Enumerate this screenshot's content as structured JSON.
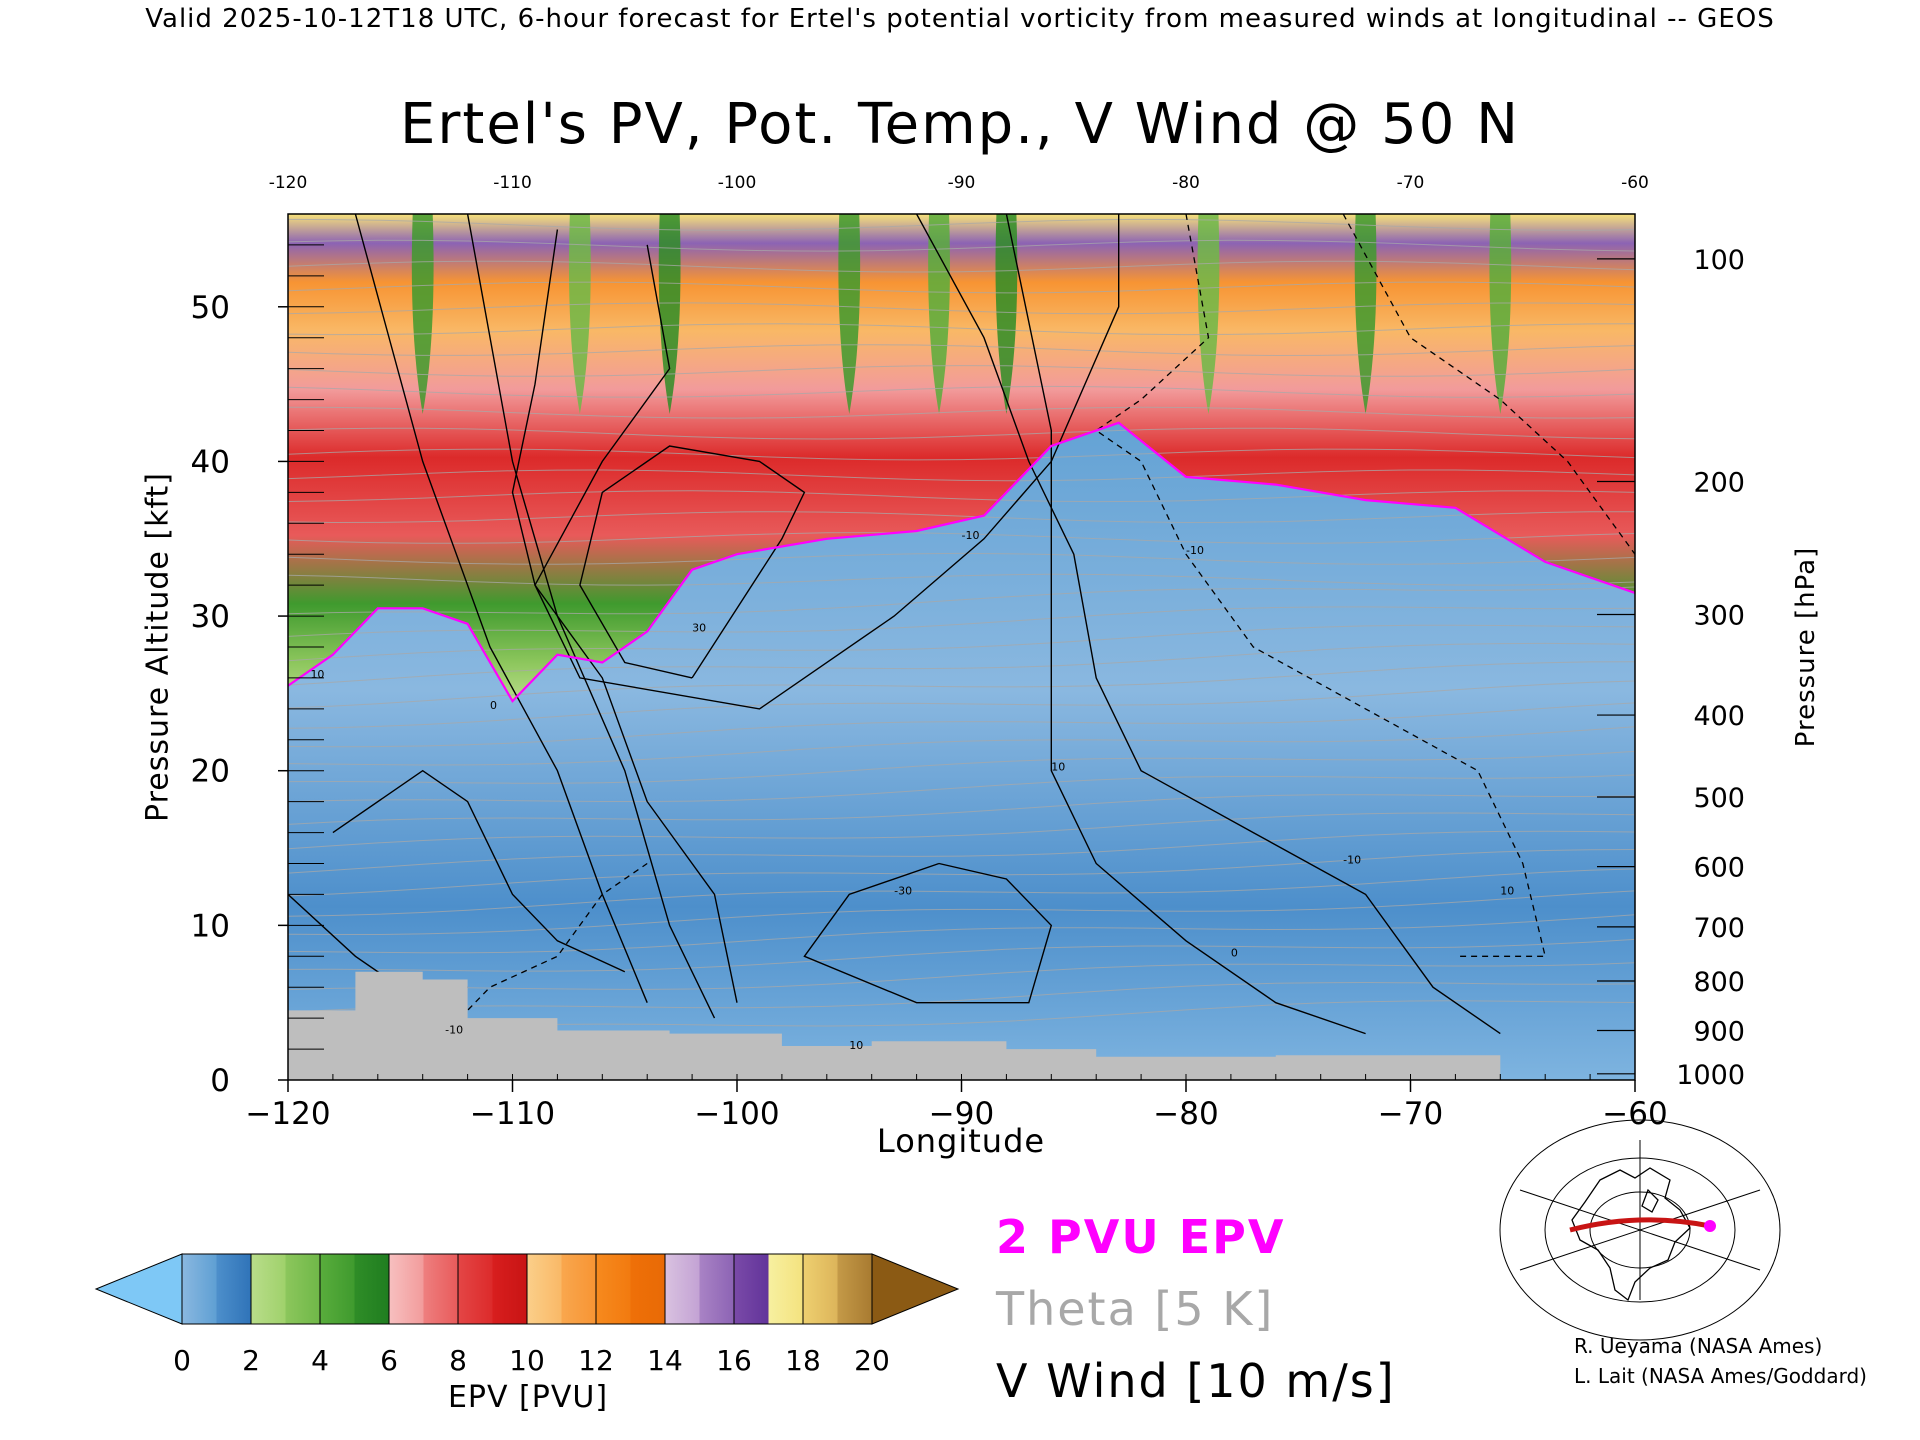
{
  "header": "Valid 2025-10-12T18 UTC, 6-hour forecast for Ertel's potential vorticity from measured winds at longitudinal -- GEOS",
  "chart_data": {
    "type": "heatmap",
    "title": "Ertel's PV, Pot. Temp., V Wind @ 50 N",
    "xlabel": "Longitude",
    "ylabel_left": "Pressure Altitude [kft]",
    "ylabel_right": "Pressure [hPa]",
    "xlim": [
      -120,
      -60
    ],
    "ylim": [
      0,
      56
    ],
    "x_ticks": [
      -120,
      -110,
      -100,
      -90,
      -80,
      -70,
      -60
    ],
    "x_tick_labels": [
      "−120",
      "−110",
      "−100",
      "−90",
      "−80",
      "−70",
      "−60"
    ],
    "top_tick_labels": [
      "-120",
      "-110",
      "-100",
      "-90",
      "-80",
      "-70",
      "-60"
    ],
    "y_ticks": [
      0,
      10,
      20,
      30,
      40,
      50
    ],
    "pressure_ticks": [
      {
        "hPa": 100,
        "kft": 53.1
      },
      {
        "hPa": 200,
        "kft": 38.7
      },
      {
        "hPa": 300,
        "kft": 30.1
      },
      {
        "hPa": 400,
        "kft": 23.6
      },
      {
        "hPa": 500,
        "kft": 18.3
      },
      {
        "hPa": 600,
        "kft": 13.8
      },
      {
        "hPa": 700,
        "kft": 9.9
      },
      {
        "hPa": 800,
        "kft": 6.4
      },
      {
        "hPa": 900,
        "kft": 3.2
      },
      {
        "hPa": 1000,
        "kft": 0.4
      }
    ],
    "tropopause_2pvu_kft": [
      {
        "lon": -120,
        "kft": 25.5
      },
      {
        "lon": -118,
        "kft": 27.5
      },
      {
        "lon": -116,
        "kft": 30.5
      },
      {
        "lon": -114,
        "kft": 30.5
      },
      {
        "lon": -112,
        "kft": 29.5
      },
      {
        "lon": -110,
        "kft": 24.5
      },
      {
        "lon": -108,
        "kft": 27.5
      },
      {
        "lon": -106,
        "kft": 27.0
      },
      {
        "lon": -104,
        "kft": 29.0
      },
      {
        "lon": -102,
        "kft": 33.0
      },
      {
        "lon": -100,
        "kft": 34.0
      },
      {
        "lon": -96,
        "kft": 35.0
      },
      {
        "lon": -92,
        "kft": 35.5
      },
      {
        "lon": -89,
        "kft": 36.5
      },
      {
        "lon": -86,
        "kft": 41.0
      },
      {
        "lon": -83,
        "kft": 42.5
      },
      {
        "lon": -80,
        "kft": 39.0
      },
      {
        "lon": -76,
        "kft": 38.5
      },
      {
        "lon": -72,
        "kft": 37.5
      },
      {
        "lon": -68,
        "kft": 37.0
      },
      {
        "lon": -64,
        "kft": 33.5
      },
      {
        "lon": -60,
        "kft": 31.5
      }
    ],
    "surface_kft": [
      {
        "lon": -120,
        "kft": 4.5
      },
      {
        "lon": -117,
        "kft": 7.0
      },
      {
        "lon": -114,
        "kft": 6.5
      },
      {
        "lon": -112,
        "kft": 4.0
      },
      {
        "lon": -108,
        "kft": 3.2
      },
      {
        "lon": -103,
        "kft": 3.0
      },
      {
        "lon": -98,
        "kft": 2.2
      },
      {
        "lon": -94,
        "kft": 2.5
      },
      {
        "lon": -88,
        "kft": 2.0
      },
      {
        "lon": -84,
        "kft": 1.5
      },
      {
        "lon": -76,
        "kft": 1.6
      },
      {
        "lon": -67,
        "kft": 1.6
      },
      {
        "lon": -66,
        "kft": 0.0
      },
      {
        "lon": -60,
        "kft": 0.0
      }
    ],
    "colorbar": {
      "label": "EPV [PVU]",
      "ticks": [
        "0",
        "2",
        "4",
        "6",
        "8",
        "10",
        "12",
        "14",
        "16",
        "18",
        "20"
      ],
      "under_color": "#7ec8f6",
      "over_color": "#8b5a14",
      "bins": [
        {
          "from": 0,
          "to": 1,
          "colors": [
            "#8ab8e0",
            "#5e9fd3"
          ]
        },
        {
          "from": 1,
          "to": 2,
          "colors": [
            "#4d8fcb",
            "#2f73b8"
          ]
        },
        {
          "from": 2,
          "to": 3,
          "colors": [
            "#b9dd8a",
            "#9fd16b"
          ]
        },
        {
          "from": 3,
          "to": 4,
          "colors": [
            "#8cc65c",
            "#6fb848"
          ]
        },
        {
          "from": 4,
          "to": 5,
          "colors": [
            "#59ad3c",
            "#3f9a2e"
          ]
        },
        {
          "from": 5,
          "to": 6,
          "colors": [
            "#2f8d27",
            "#1f7d20"
          ]
        },
        {
          "from": 6,
          "to": 7,
          "colors": [
            "#f7c0c0",
            "#f29b9b"
          ]
        },
        {
          "from": 7,
          "to": 8,
          "colors": [
            "#ee7f7f",
            "#e85a5a"
          ]
        },
        {
          "from": 8,
          "to": 9,
          "colors": [
            "#e44646",
            "#dc2a2a"
          ]
        },
        {
          "from": 9,
          "to": 10,
          "colors": [
            "#d81e1e",
            "#c81414"
          ]
        },
        {
          "from": 10,
          "to": 11,
          "colors": [
            "#fbcf8a",
            "#f9b866"
          ]
        },
        {
          "from": 11,
          "to": 12,
          "colors": [
            "#f9a74e",
            "#f79433"
          ]
        },
        {
          "from": 12,
          "to": 13,
          "colors": [
            "#f68a1e",
            "#f27a0f"
          ]
        },
        {
          "from": 13,
          "to": 14,
          "colors": [
            "#ef7008",
            "#e86a05"
          ]
        },
        {
          "from": 14,
          "to": 15,
          "colors": [
            "#d9c2e0",
            "#c3a2d4"
          ]
        },
        {
          "from": 15,
          "to": 16,
          "colors": [
            "#a983c5",
            "#8c63b4"
          ]
        },
        {
          "from": 16,
          "to": 17,
          "colors": [
            "#7a4aa8",
            "#62349a"
          ]
        },
        {
          "from": 17,
          "to": 18,
          "colors": [
            "#f7f0a0",
            "#f4e27e"
          ]
        },
        {
          "from": 18,
          "to": 19,
          "colors": [
            "#eed070",
            "#dcb45a"
          ]
        },
        {
          "from": 19,
          "to": 20,
          "colors": [
            "#c49a48",
            "#a87a30"
          ]
        }
      ]
    },
    "legend": {
      "epv_contour": "2 PVU EPV",
      "theta": "Theta [5 K]",
      "vwind": "V Wind [10 m/s]"
    },
    "contour_labels": [
      "10",
      "-10",
      "0",
      "30",
      "-30",
      "-10",
      "10",
      "0",
      "-10",
      "10",
      "-10",
      "10"
    ]
  },
  "credits": [
    "R. Ueyama (NASA Ames)",
    "L. Lait (NASA Ames/Goddard)"
  ],
  "colors": {
    "epv_contour": "#ff00ff",
    "theta": "#a8a8a8",
    "terrain": "#bebebe",
    "map_track": "#c81414"
  }
}
